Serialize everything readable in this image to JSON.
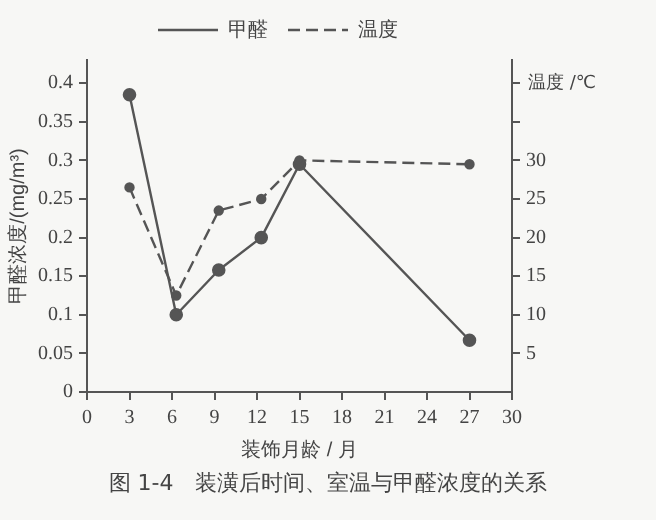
{
  "chart_data": {
    "type": "line",
    "xlabel": "装饰月龄 / 月",
    "ylabel": "甲醛浓度/(mg/m³)",
    "y2label": "温度 /℃",
    "annotations": [
      "图 1-4　装潢后时间、室温与甲醛浓度的关系"
    ],
    "x": [
      3,
      6.3,
      9.3,
      12.3,
      15,
      27
    ],
    "series": [
      {
        "name": "甲醛",
        "color": "#555555",
        "values": [
          0.385,
          0.1,
          0.158,
          0.2,
          0.295,
          0.067
        ],
        "line_style": "solid"
      },
      {
        "name": "温度",
        "color": "#555555",
        "values": [
          26.5,
          12.5,
          23.5,
          25,
          30,
          29.5
        ],
        "axis": "y2",
        "line_style": "dashed"
      }
    ],
    "xlim": [
      0,
      30
    ],
    "xticks": [
      0,
      3,
      6,
      9,
      12,
      15,
      18,
      21,
      24,
      27,
      30
    ],
    "ylim": [
      0,
      0.43
    ],
    "yticks": [
      0,
      0.05,
      0.1,
      0.15,
      0.2,
      0.25,
      0.3,
      0.35,
      0.4
    ],
    "y2lim": [
      0,
      43
    ],
    "y2ticks": [
      5,
      10,
      15,
      20,
      25,
      30,
      {
        "value": 35,
        "label": null
      },
      {
        "value": 40,
        "label": null
      }
    ],
    "grid": false,
    "legend": "top",
    "marker": "circle"
  }
}
